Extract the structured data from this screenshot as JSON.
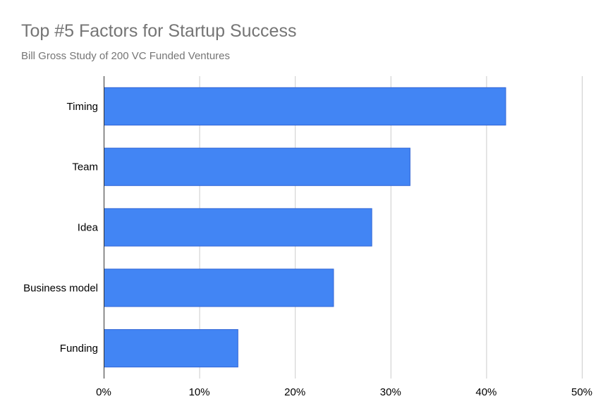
{
  "colors": {
    "bar_fill": "#4285f4",
    "bar_stroke": "#3367d6"
  },
  "chart_data": {
    "type": "bar",
    "orientation": "horizontal",
    "title": "Top #5 Factors for Startup Success",
    "subtitle": "Bill Gross Study of 200 VC Funded Ventures",
    "categories": [
      "Timing",
      "Team",
      "Idea",
      "Business model",
      "Funding"
    ],
    "values": [
      42,
      32,
      28,
      24,
      14
    ],
    "xlim": [
      0,
      50
    ],
    "x_ticks": [
      0,
      10,
      20,
      30,
      40,
      50
    ],
    "x_tick_labels": [
      "0%",
      "10%",
      "20%",
      "30%",
      "40%",
      "50%"
    ],
    "grid": true,
    "legend": "none"
  }
}
